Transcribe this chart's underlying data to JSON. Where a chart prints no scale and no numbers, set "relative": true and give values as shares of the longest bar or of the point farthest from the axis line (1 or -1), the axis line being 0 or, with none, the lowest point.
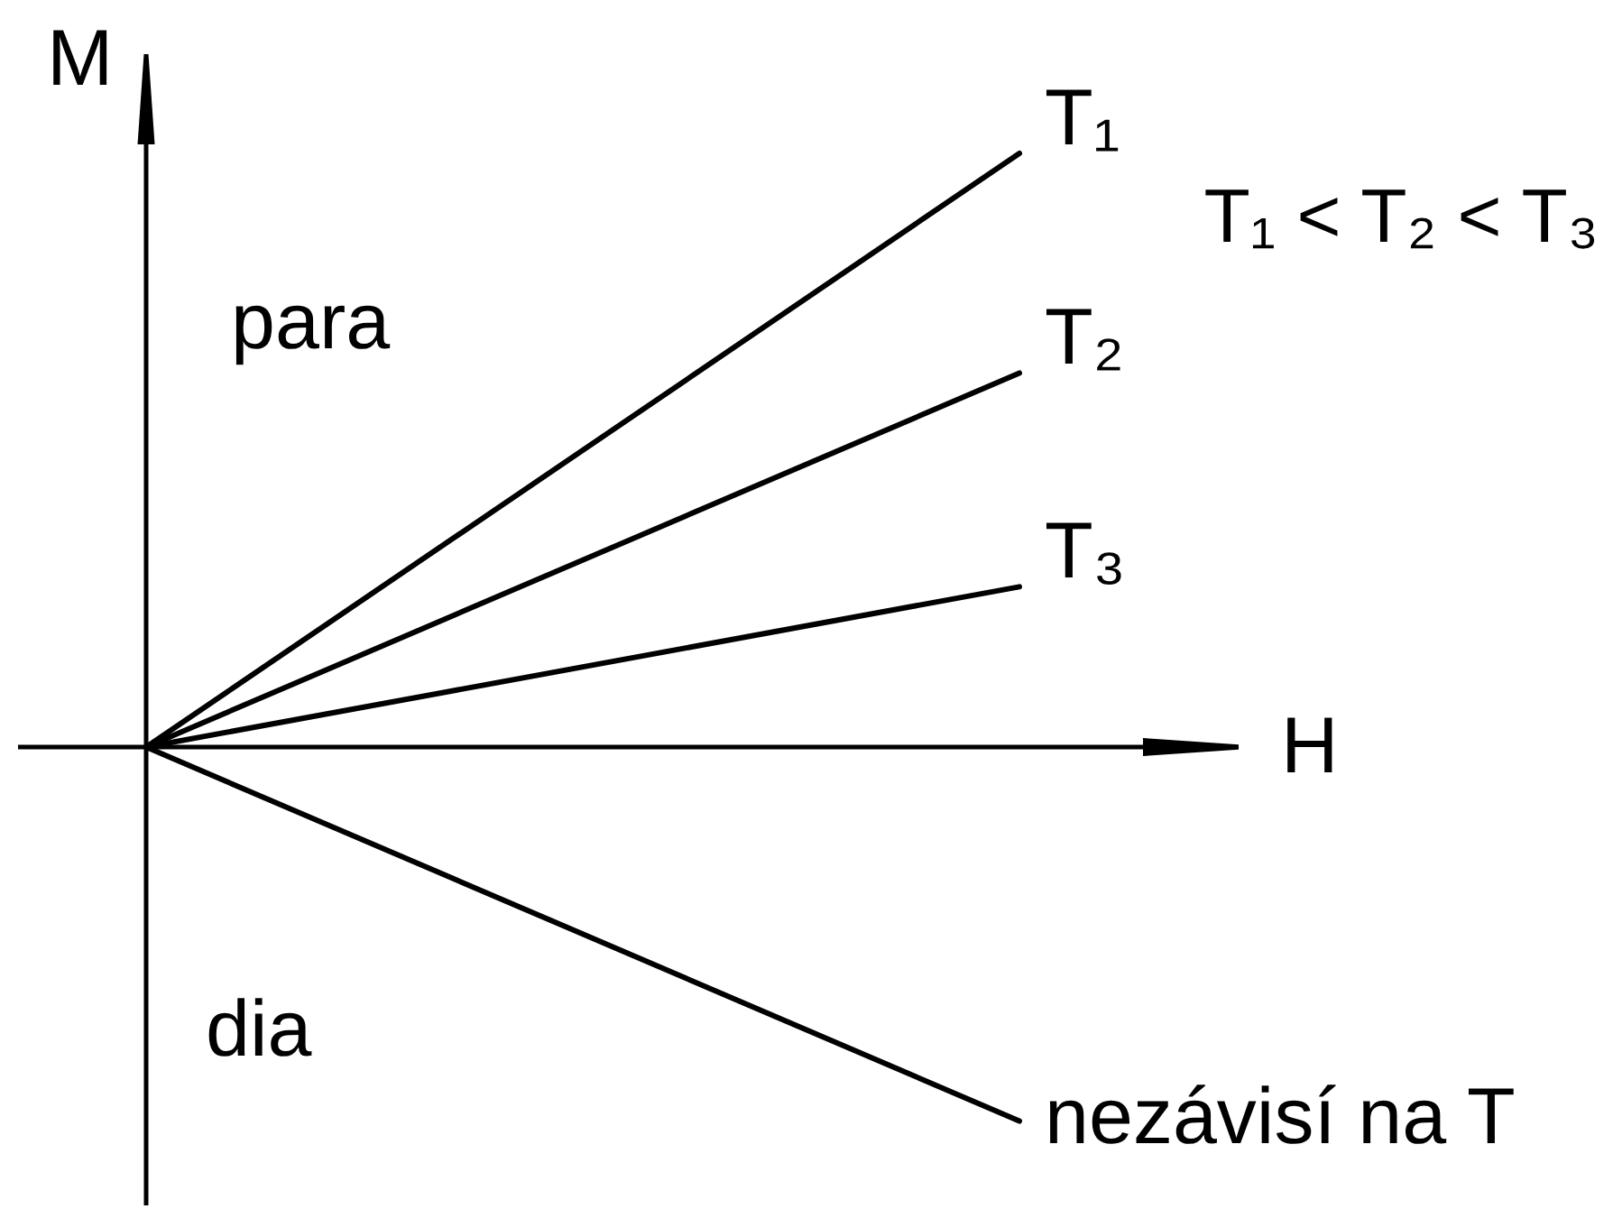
{
  "chart_data": {
    "type": "line",
    "xlabel": "H",
    "ylabel": "M",
    "relative": true,
    "categories": [
      null,
      null
    ],
    "series": [
      {
        "name": "T₁",
        "color": "#000000",
        "values": [
          0,
          1
        ]
      },
      {
        "name": "T₂",
        "color": "#000000",
        "values": [
          0,
          0.63
        ]
      },
      {
        "name": "T₃",
        "color": "#000000",
        "values": [
          0,
          0.27
        ]
      },
      {
        "name": "nezávisí na T",
        "color": "#000000",
        "values": [
          0,
          -0.63
        ]
      }
    ],
    "annotations": [
      "T₁ < T₂ < T₃",
      "para",
      "dia"
    ]
  }
}
